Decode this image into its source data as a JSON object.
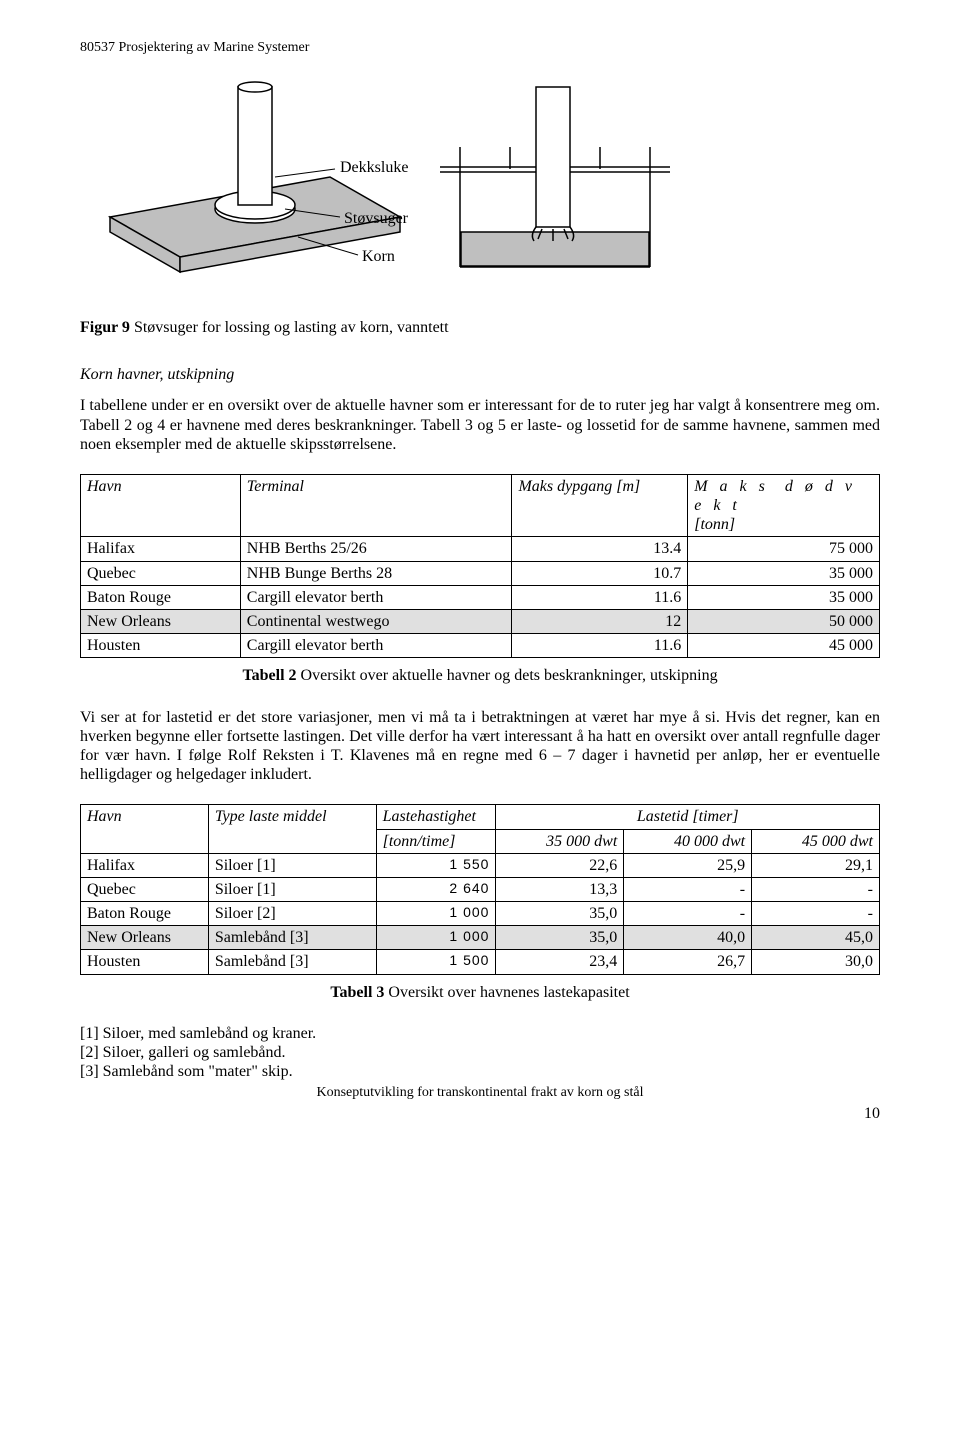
{
  "header": "80537 Prosjektering av Marine Systemer",
  "diagram": {
    "labels": {
      "dekksluke": "Dekksluke",
      "stovsuger": "Støvsuger",
      "korn": "Korn"
    },
    "colors": {
      "fill_gray": "#bfbfbf",
      "stroke": "#000000",
      "bg": "#ffffff"
    }
  },
  "fig9": {
    "label": "Figur 9",
    "text": " Støvsuger for lossing og lasting av korn, vanntett"
  },
  "sec1_title": "Korn havner, utskipning",
  "para1": "I tabellene under er en oversikt over de aktuelle havner som er interessant for de to ruter jeg har valgt å konsentrere meg om. Tabell 2 og 4 er havnene med deres beskrankninger. Tabell 3 og 5 er laste- og lossetid for de samme havnene, sammen med noen eksempler med de aktuelle skipsstørrelsene.",
  "table1": {
    "headers": {
      "havn": "Havn",
      "terminal": "Terminal",
      "dypgang": "Maks dypgang [m]",
      "maks": "M a k s",
      "dodvekt": "d ø d v e k t",
      "tonn": "[tonn]"
    },
    "rows": [
      {
        "havn": "Halifax",
        "terminal": "NHB Berths 25/26",
        "dypgang": "13.4",
        "dodvekt": "75 000",
        "hl": false
      },
      {
        "havn": "Quebec",
        "terminal": "NHB Bunge Berths 28",
        "dypgang": "10.7",
        "dodvekt": "35 000",
        "hl": false
      },
      {
        "havn": "Baton Rouge",
        "terminal": "Cargill elevator berth",
        "dypgang": "11.6",
        "dodvekt": "35 000",
        "hl": false
      },
      {
        "havn": "New Orleans",
        "terminal": "Continental westwego",
        "dypgang": "12",
        "dodvekt": "50 000",
        "hl": true
      },
      {
        "havn": "Housten",
        "terminal": "Cargill elevator berth",
        "dypgang": "11.6",
        "dodvekt": "45 000",
        "hl": false
      }
    ],
    "caption_label": "Tabell 2",
    "caption_text": " Oversikt over aktuelle havner og dets beskrankninger, utskipning"
  },
  "para2": "Vi ser at for lastetid er det store variasjoner, men vi må ta i betraktningen at været har mye å si. Hvis det regner, kan en hverken begynne eller fortsette lastingen. Det ville derfor ha vært interessant å ha hatt en oversikt over antall regnfulle dager for vær havn. I følge Rolf Reksten i T. Klavenes må en regne med 6 – 7 dager i havnetid per anløp, her er eventuelle helligdager og helgedager inkludert.",
  "table2": {
    "headers": {
      "havn": "Havn",
      "type": "Type laste middel",
      "hastighet": "Lastehastighet",
      "hastighet_unit": "[tonn/time]",
      "lastetid": "Lastetid [timer]",
      "d1": "35 000 dwt",
      "d2": "40 000 dwt",
      "d3": "45 000 dwt"
    },
    "rows": [
      {
        "havn": "Halifax",
        "type": "Siloer [1]",
        "rate": "1 550",
        "d1": "22,6",
        "d2": "25,9",
        "d3": "29,1",
        "hl": false
      },
      {
        "havn": "Quebec",
        "type": "Siloer [1]",
        "rate": "2 640",
        "d1": "13,3",
        "d2": "-",
        "d3": "-",
        "hl": false
      },
      {
        "havn": "Baton Rouge",
        "type": "Siloer [2]",
        "rate": "1 000",
        "d1": "35,0",
        "d2": "-",
        "d3": "-",
        "hl": false
      },
      {
        "havn": "New Orleans",
        "type": "Samlebånd [3]",
        "rate": "1 000",
        "d1": "35,0",
        "d2": "40,0",
        "d3": "45,0",
        "hl": true
      },
      {
        "havn": "Housten",
        "type": "Samlebånd [3]",
        "rate": "1 500",
        "d1": "23,4",
        "d2": "26,7",
        "d3": "30,0",
        "hl": false
      }
    ],
    "caption_label": "Tabell 3",
    "caption_text": " Oversikt over havnenes lastekapasitet"
  },
  "footnotes": {
    "f1": "[1] Siloer, med samlebånd og kraner.",
    "f2": "[2] Siloer, galleri og samlebånd.",
    "f3": "[3] Samlebånd som \"mater\" skip."
  },
  "footer_sub": "Konseptutvikling for transkontinental frakt av korn og stål",
  "page_num": "10"
}
